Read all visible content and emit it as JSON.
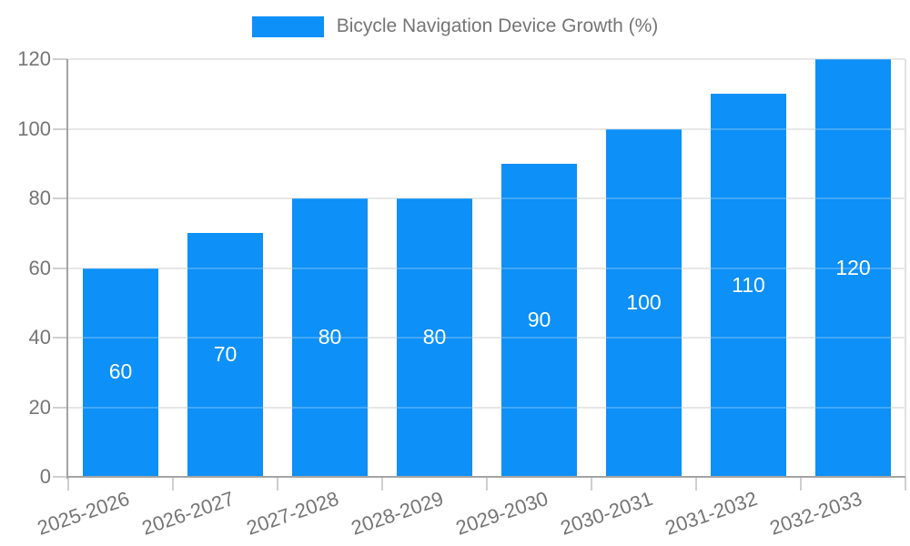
{
  "legend": {
    "label": "Bicycle Navigation Device Growth (%)"
  },
  "colors": {
    "bar": "#0d90f7",
    "grid": "#e0e0e0",
    "grid_over_bar": "rgba(255,255,255,0.22)",
    "axis": "#a3a3a3",
    "tick": "#cfcfcf",
    "text": "#757575",
    "data_label": "#ffffff",
    "background": "#ffffff"
  },
  "chart_data": {
    "type": "bar",
    "title": "Bicycle Navigation Device Growth (%)",
    "categories": [
      "2025-2026",
      "2026-2027",
      "2027-2028",
      "2028-2029",
      "2029-2030",
      "2030-2031",
      "2031-2032",
      "2032-2033"
    ],
    "values": [
      60,
      70,
      80,
      80,
      90,
      100,
      110,
      120
    ],
    "xlabel": "",
    "ylabel": "",
    "ylim": [
      0,
      120
    ],
    "yticks": [
      0,
      20,
      40,
      60,
      80,
      100,
      120
    ],
    "grid": true,
    "legend_position": "top-center",
    "bar_labels": "inside-middle",
    "xlabel_rotation_deg": -19
  }
}
